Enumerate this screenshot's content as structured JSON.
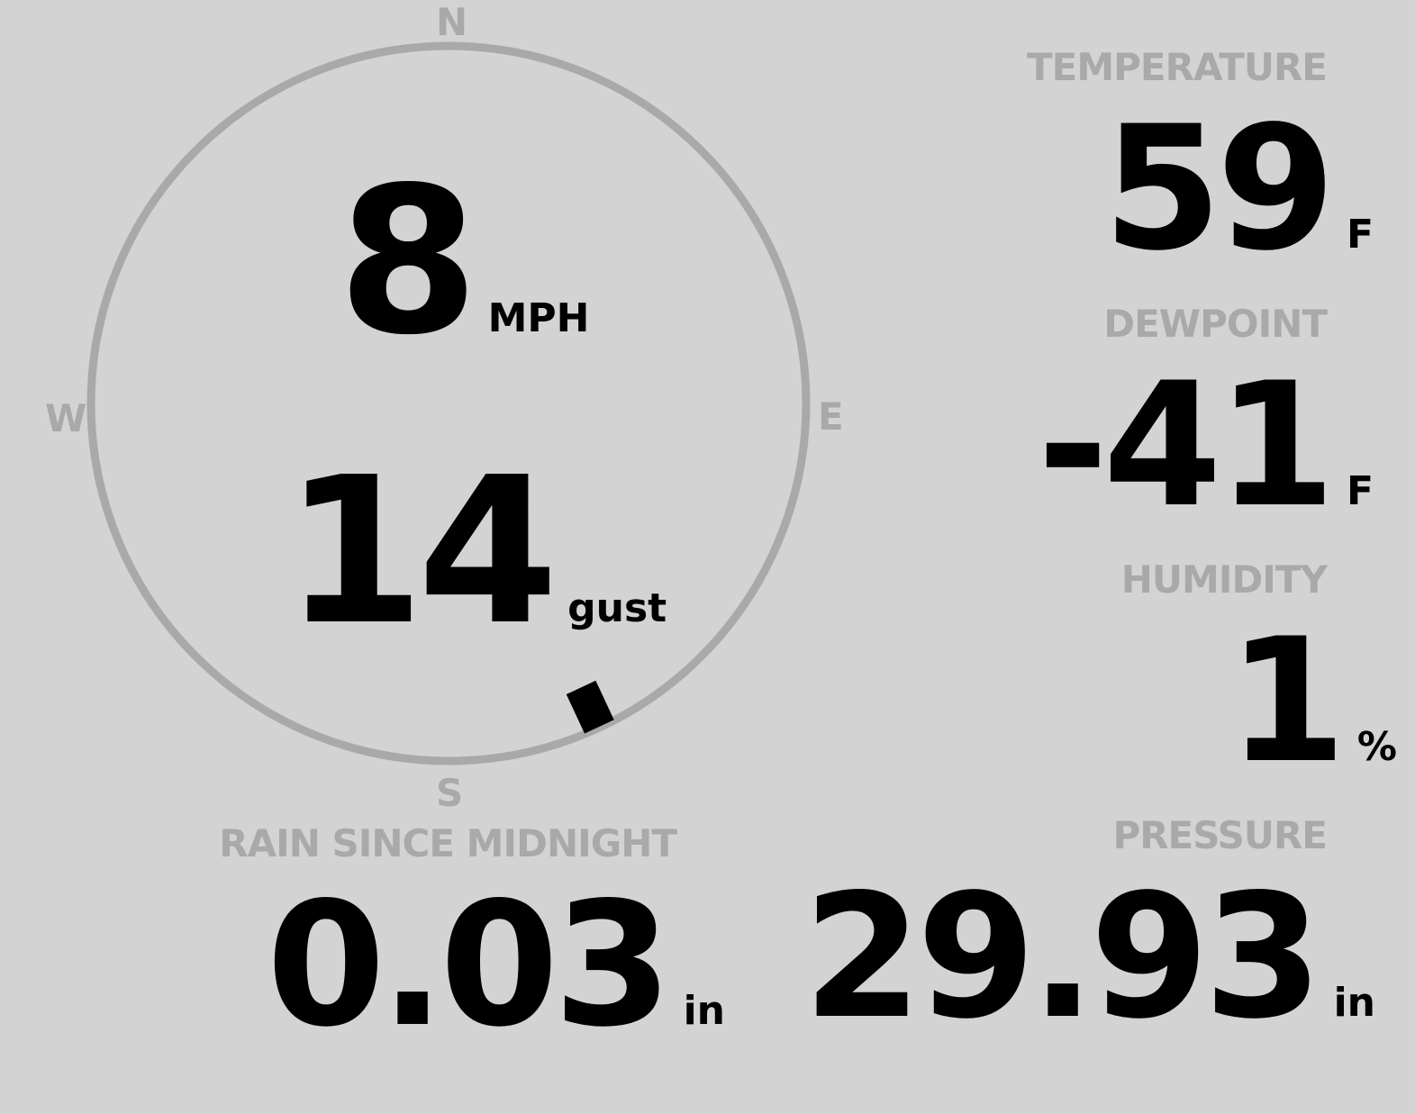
{
  "compass": {
    "n": "N",
    "e": "E",
    "s": "S",
    "w": "W",
    "direction_deg": 155
  },
  "wind": {
    "speed": "8",
    "speed_unit": "MPH",
    "gust": "14",
    "gust_unit": "gust"
  },
  "temperature": {
    "label": "TEMPERATURE",
    "value": "59",
    "unit": "F"
  },
  "dewpoint": {
    "label": "DEWPOINT",
    "value": "-41",
    "unit": "F"
  },
  "humidity": {
    "label": "HUMIDITY",
    "value": "1",
    "unit": "%"
  },
  "rain": {
    "label": "RAIN SINCE MIDNIGHT",
    "value": "0.03",
    "unit": "in"
  },
  "pressure": {
    "label": "PRESSURE",
    "value": "29.93",
    "unit": "in"
  },
  "colors": {
    "background": "#d3d3d3",
    "label": "#a9a9a9",
    "value": "#000000"
  }
}
